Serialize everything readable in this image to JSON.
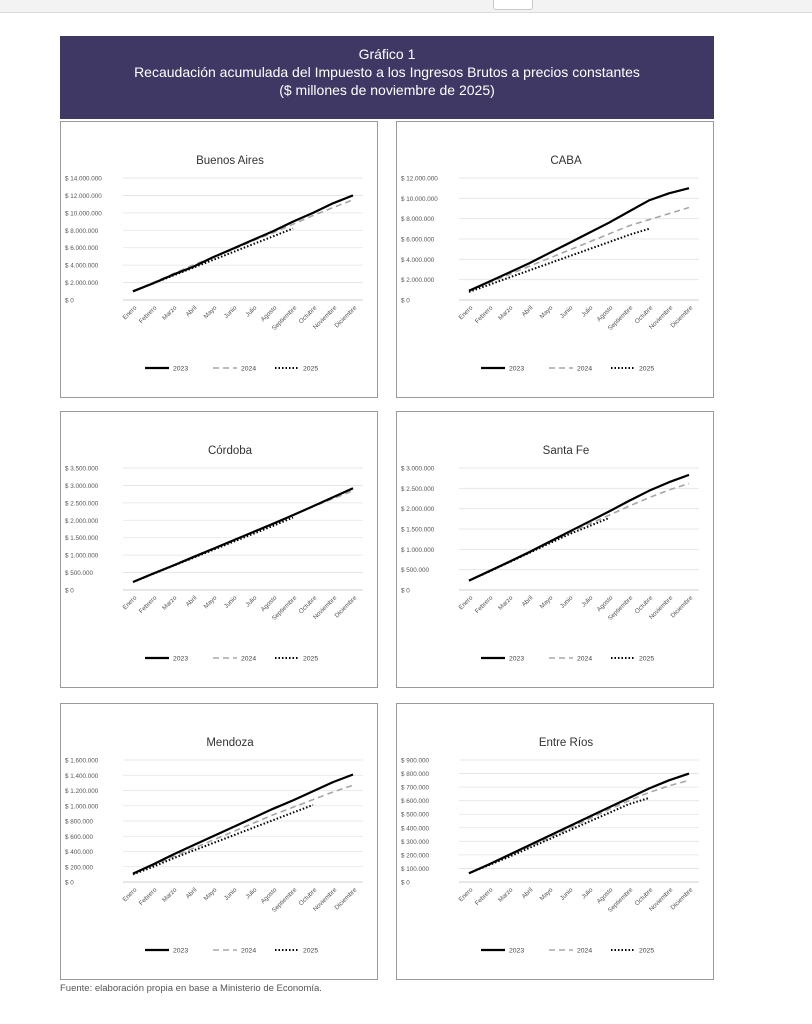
{
  "header": {
    "line1": "Gráfico 1",
    "line2": "Recaudación acumulada del Impuesto a los Ingresos Brutos a precios constantes",
    "line3": "($ millones de noviembre de 2025)"
  },
  "source": "Fuente: elaboración propia en base a Ministerio de Economía.",
  "colors": {
    "header_bg": "#3f3864",
    "s2023": "#000000",
    "s2024": "#a6a6a6",
    "s2025": "#000000"
  },
  "chart_data": [
    {
      "type": "line",
      "title": "Buenos Aires",
      "categories": [
        "Enero",
        "Febrero",
        "Marzo",
        "Abril",
        "Mayo",
        "Junio",
        "Julio",
        "Agosto",
        "Septiembre",
        "Octubre",
        "Noviembre",
        "Diciembre"
      ],
      "yticks": [
        "$ 0",
        "$ 2.000.000",
        "$ 4.000.000",
        "$ 6.000.000",
        "$ 8.000.000",
        "$ 10.000.000",
        "$ 12.000.000",
        "$ 14.000.000"
      ],
      "ylim": [
        0,
        14000000
      ],
      "series": [
        {
          "name": "2023",
          "values": [
            1000000,
            1900000,
            2900000,
            3800000,
            4900000,
            5900000,
            6900000,
            7900000,
            9000000,
            10000000,
            11100000,
            12000000
          ]
        },
        {
          "name": "2024",
          "values": [
            1000000,
            2000000,
            3000000,
            4000000,
            4900000,
            5800000,
            6800000,
            7700000,
            8700000,
            9700000,
            10600000,
            11500000
          ]
        },
        {
          "name": "2025",
          "values": [
            1000000,
            1900000,
            2800000,
            3700000,
            4600000,
            5500000,
            6400000,
            7300000,
            8200000,
            null,
            null,
            null
          ]
        }
      ]
    },
    {
      "type": "line",
      "title": "CABA",
      "categories": [
        "Enero",
        "Febrero",
        "Marzo",
        "Abril",
        "Mayo",
        "Junio",
        "Julio",
        "Agosto",
        "Septiembre",
        "Octubre",
        "Noviembre",
        "Diciembre"
      ],
      "yticks": [
        "$ 0",
        "$ 2.000.000",
        "$ 4.000.000",
        "$ 6.000.000",
        "$ 8.000.000",
        "$ 10.000.000",
        "$ 12.000.000"
      ],
      "ylim": [
        0,
        12000000
      ],
      "series": [
        {
          "name": "2023",
          "values": [
            900000,
            1800000,
            2700000,
            3600000,
            4600000,
            5600000,
            6600000,
            7600000,
            8700000,
            9800000,
            10500000,
            11000000
          ]
        },
        {
          "name": "2024",
          "values": [
            900000,
            1700000,
            2500000,
            3300000,
            4100000,
            4900000,
            5700000,
            6500000,
            7300000,
            7900000,
            8500000,
            9100000
          ]
        },
        {
          "name": "2025",
          "values": [
            800000,
            1500000,
            2200000,
            2900000,
            3600000,
            4300000,
            5000000,
            5700000,
            6400000,
            7000000,
            null,
            null
          ]
        }
      ]
    },
    {
      "type": "line",
      "title": "Córdoba",
      "categories": [
        "Enero",
        "Febrero",
        "Marzo",
        "Abril",
        "Mayo",
        "Junio",
        "Julio",
        "Agosto",
        "Septiembre",
        "Octubre",
        "Noviembre",
        "Diciembre"
      ],
      "yticks": [
        "$ 0",
        "$ 500.000",
        "$ 1.000.000",
        "$ 1.500.000",
        "$ 2.000.000",
        "$ 2.500.000",
        "$ 3.000.000",
        "$ 3.500.000"
      ],
      "ylim": [
        0,
        3500000
      ],
      "series": [
        {
          "name": "2023",
          "values": [
            230000,
            470000,
            700000,
            940000,
            1180000,
            1420000,
            1660000,
            1900000,
            2150000,
            2400000,
            2660000,
            2920000
          ]
        },
        {
          "name": "2024",
          "values": [
            230000,
            470000,
            710000,
            950000,
            1190000,
            1430000,
            1670000,
            1910000,
            2150000,
            2390000,
            2620000,
            2850000
          ]
        },
        {
          "name": "2025",
          "values": [
            230000,
            460000,
            690000,
            920000,
            1150000,
            1380000,
            1610000,
            1840000,
            2080000,
            null,
            null,
            null
          ]
        }
      ]
    },
    {
      "type": "line",
      "title": "Santa Fe",
      "categories": [
        "Enero",
        "Febrero",
        "Marzo",
        "Abril",
        "Mayo",
        "Junio",
        "Julio",
        "Agosto",
        "Septiembre",
        "Octubre",
        "Noviembre",
        "Diciembre"
      ],
      "yticks": [
        "$ 0",
        "$ 500.000",
        "$ 1.000.000",
        "$ 1.500.000",
        "$ 2.000.000",
        "$ 2.500.000",
        "$ 3.000.000"
      ],
      "ylim": [
        0,
        3000000
      ],
      "series": [
        {
          "name": "2023",
          "values": [
            230000,
            460000,
            690000,
            930000,
            1180000,
            1430000,
            1680000,
            1930000,
            2190000,
            2440000,
            2650000,
            2830000
          ]
        },
        {
          "name": "2024",
          "values": [
            230000,
            450000,
            680000,
            920000,
            1160000,
            1400000,
            1620000,
            1840000,
            2060000,
            2270000,
            2460000,
            2620000
          ]
        },
        {
          "name": "2025",
          "values": [
            230000,
            450000,
            680000,
            910000,
            1140000,
            1370000,
            1570000,
            1770000,
            null,
            null,
            null,
            null
          ]
        }
      ]
    },
    {
      "type": "line",
      "title": "Mendoza",
      "categories": [
        "Enero",
        "Febrero",
        "Marzo",
        "Abril",
        "Mayo",
        "Junio",
        "Julio",
        "Agosto",
        "Septiembre",
        "Octubre",
        "Noviembre",
        "Diciembre"
      ],
      "yticks": [
        "$ 0",
        "$ 200.000",
        "$ 400.000",
        "$ 600.000",
        "$ 800.000",
        "$ 1.000.000",
        "$ 1.200.000",
        "$ 1.400.000",
        "$ 1.600.000"
      ],
      "ylim": [
        0,
        1600000
      ],
      "series": [
        {
          "name": "2023",
          "values": [
            110000,
            230000,
            360000,
            480000,
            600000,
            720000,
            840000,
            960000,
            1070000,
            1190000,
            1310000,
            1410000
          ]
        },
        {
          "name": "2024",
          "values": [
            110000,
            220000,
            330000,
            440000,
            550000,
            660000,
            770000,
            880000,
            980000,
            1080000,
            1180000,
            1270000
          ]
        },
        {
          "name": "2025",
          "values": [
            100000,
            200000,
            310000,
            410000,
            510000,
            610000,
            710000,
            810000,
            910000,
            1010000,
            null,
            null
          ]
        }
      ]
    },
    {
      "type": "line",
      "title": "Entre Ríos",
      "categories": [
        "Enero",
        "Febrero",
        "Marzo",
        "Abril",
        "Mayo",
        "Junio",
        "Julio",
        "Agosto",
        "Septiembre",
        "Octubre",
        "Noviembre",
        "Diciembre"
      ],
      "yticks": [
        "$ 0",
        "$ 100.000",
        "$ 200.000",
        "$ 300.000",
        "$ 400.000",
        "$ 500.000",
        "$ 600.000",
        "$ 700.000",
        "$ 800.000",
        "$ 900.000"
      ],
      "ylim": [
        0,
        900000
      ],
      "series": [
        {
          "name": "2023",
          "values": [
            65000,
            130000,
            200000,
            270000,
            340000,
            410000,
            480000,
            550000,
            620000,
            690000,
            750000,
            800000
          ]
        },
        {
          "name": "2024",
          "values": [
            65000,
            130000,
            195000,
            260000,
            325000,
            395000,
            465000,
            535000,
            600000,
            660000,
            710000,
            750000
          ]
        },
        {
          "name": "2025",
          "values": [
            65000,
            125000,
            185000,
            250000,
            315000,
            380000,
            445000,
            510000,
            575000,
            620000,
            null,
            null
          ]
        }
      ]
    }
  ]
}
